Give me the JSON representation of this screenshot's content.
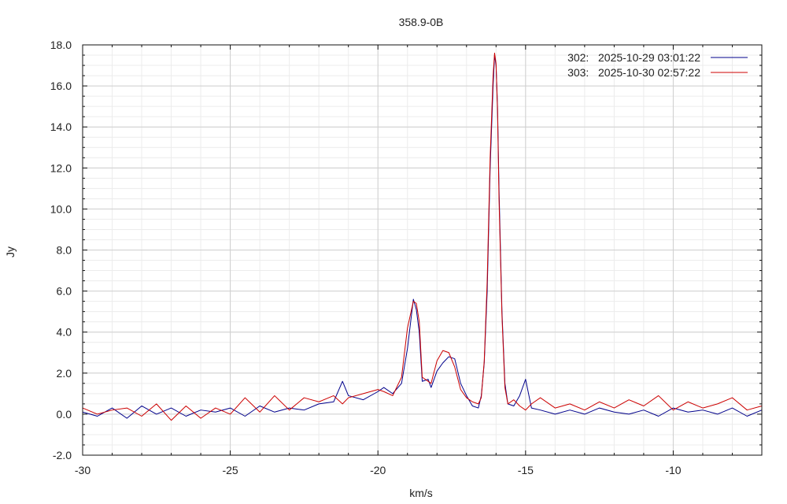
{
  "chart_data": {
    "type": "line",
    "title": "358.9-0B",
    "xlabel": "km/s",
    "ylabel": "Jy",
    "xlim": [
      -30,
      -7
    ],
    "ylim": [
      -2.0,
      18.0
    ],
    "x_ticks": [
      -30,
      -25,
      -20,
      -15,
      -10
    ],
    "x_tick_labels": [
      "-30",
      "-25",
      "-20",
      "-15",
      "-10"
    ],
    "y_ticks": [
      -2,
      0,
      2,
      4,
      6,
      8,
      10,
      12,
      14,
      16,
      18
    ],
    "y_tick_labels": [
      "-2.0",
      "0.0",
      "2.0",
      "4.0",
      "6.0",
      "8.0",
      "10.0",
      "12.0",
      "14.0",
      "16.0",
      "18.0"
    ],
    "grid": true,
    "legend_position": "top-right",
    "series": [
      {
        "name": "302:   2025-10-29 03:01:22",
        "color": "#00008b",
        "x": [
          -30.0,
          -29.5,
          -29.0,
          -28.5,
          -28.0,
          -27.5,
          -27.0,
          -26.5,
          -26.0,
          -25.5,
          -25.0,
          -24.5,
          -24.0,
          -23.5,
          -23.0,
          -22.5,
          -22.0,
          -21.5,
          -21.2,
          -21.0,
          -20.5,
          -20.0,
          -19.8,
          -19.5,
          -19.2,
          -19.0,
          -18.8,
          -18.7,
          -18.6,
          -18.5,
          -18.3,
          -18.2,
          -18.0,
          -17.8,
          -17.6,
          -17.4,
          -17.2,
          -17.0,
          -16.8,
          -16.6,
          -16.5,
          -16.4,
          -16.3,
          -16.2,
          -16.1,
          -16.05,
          -16.0,
          -15.95,
          -15.9,
          -15.8,
          -15.7,
          -15.6,
          -15.4,
          -15.2,
          -15.0,
          -14.8,
          -14.5,
          -14.0,
          -13.5,
          -13.0,
          -12.5,
          -12.0,
          -11.5,
          -11.0,
          -10.5,
          -10.0,
          -9.5,
          -9.0,
          -8.5,
          -8.0,
          -7.5,
          -7.0
        ],
        "y": [
          0.1,
          -0.1,
          0.3,
          -0.2,
          0.4,
          0.0,
          0.3,
          -0.1,
          0.2,
          0.1,
          0.3,
          -0.1,
          0.4,
          0.1,
          0.3,
          0.2,
          0.5,
          0.6,
          1.6,
          0.9,
          0.7,
          1.1,
          1.3,
          1.0,
          1.5,
          3.2,
          5.6,
          5.1,
          4.0,
          1.6,
          1.7,
          1.3,
          2.1,
          2.5,
          2.8,
          2.7,
          1.5,
          0.9,
          0.4,
          0.3,
          0.9,
          2.5,
          6.0,
          12.0,
          16.0,
          17.5,
          17.0,
          15.0,
          11.0,
          5.0,
          1.5,
          0.5,
          0.4,
          0.9,
          1.7,
          0.3,
          0.2,
          0.0,
          0.2,
          0.0,
          0.3,
          0.1,
          0.0,
          0.2,
          -0.1,
          0.3,
          0.1,
          0.2,
          0.0,
          0.3,
          -0.1,
          0.2
        ]
      },
      {
        "name": "303:   2025-10-30 02:57:22",
        "color": "#cc0000",
        "x": [
          -30.0,
          -29.5,
          -29.0,
          -28.5,
          -28.0,
          -27.5,
          -27.0,
          -26.5,
          -26.0,
          -25.5,
          -25.0,
          -24.5,
          -24.0,
          -23.5,
          -23.0,
          -22.5,
          -22.0,
          -21.5,
          -21.2,
          -21.0,
          -20.5,
          -20.0,
          -19.8,
          -19.5,
          -19.2,
          -19.0,
          -18.8,
          -18.7,
          -18.6,
          -18.5,
          -18.3,
          -18.2,
          -18.0,
          -17.8,
          -17.6,
          -17.4,
          -17.2,
          -17.0,
          -16.8,
          -16.6,
          -16.5,
          -16.4,
          -16.3,
          -16.2,
          -16.1,
          -16.05,
          -16.0,
          -15.95,
          -15.9,
          -15.8,
          -15.7,
          -15.6,
          -15.4,
          -15.2,
          -15.0,
          -14.8,
          -14.5,
          -14.0,
          -13.5,
          -13.0,
          -12.5,
          -12.0,
          -11.5,
          -11.0,
          -10.5,
          -10.0,
          -9.5,
          -9.0,
          -8.5,
          -8.0,
          -7.5,
          -7.0
        ],
        "y": [
          0.3,
          0.0,
          0.2,
          0.3,
          -0.1,
          0.5,
          -0.3,
          0.4,
          -0.2,
          0.3,
          0.0,
          0.8,
          0.1,
          0.9,
          0.2,
          0.8,
          0.6,
          0.9,
          0.5,
          0.8,
          1.0,
          1.2,
          1.1,
          0.9,
          1.8,
          4.2,
          5.5,
          5.4,
          4.5,
          1.8,
          1.6,
          1.5,
          2.6,
          3.1,
          3.0,
          2.3,
          1.2,
          0.8,
          0.6,
          0.5,
          0.8,
          2.6,
          6.5,
          12.5,
          16.5,
          17.6,
          17.1,
          14.8,
          10.5,
          4.8,
          1.3,
          0.5,
          0.7,
          0.4,
          0.2,
          0.5,
          0.8,
          0.3,
          0.5,
          0.2,
          0.6,
          0.3,
          0.7,
          0.4,
          0.9,
          0.2,
          0.6,
          0.3,
          0.5,
          0.8,
          0.2,
          0.4
        ]
      }
    ]
  }
}
